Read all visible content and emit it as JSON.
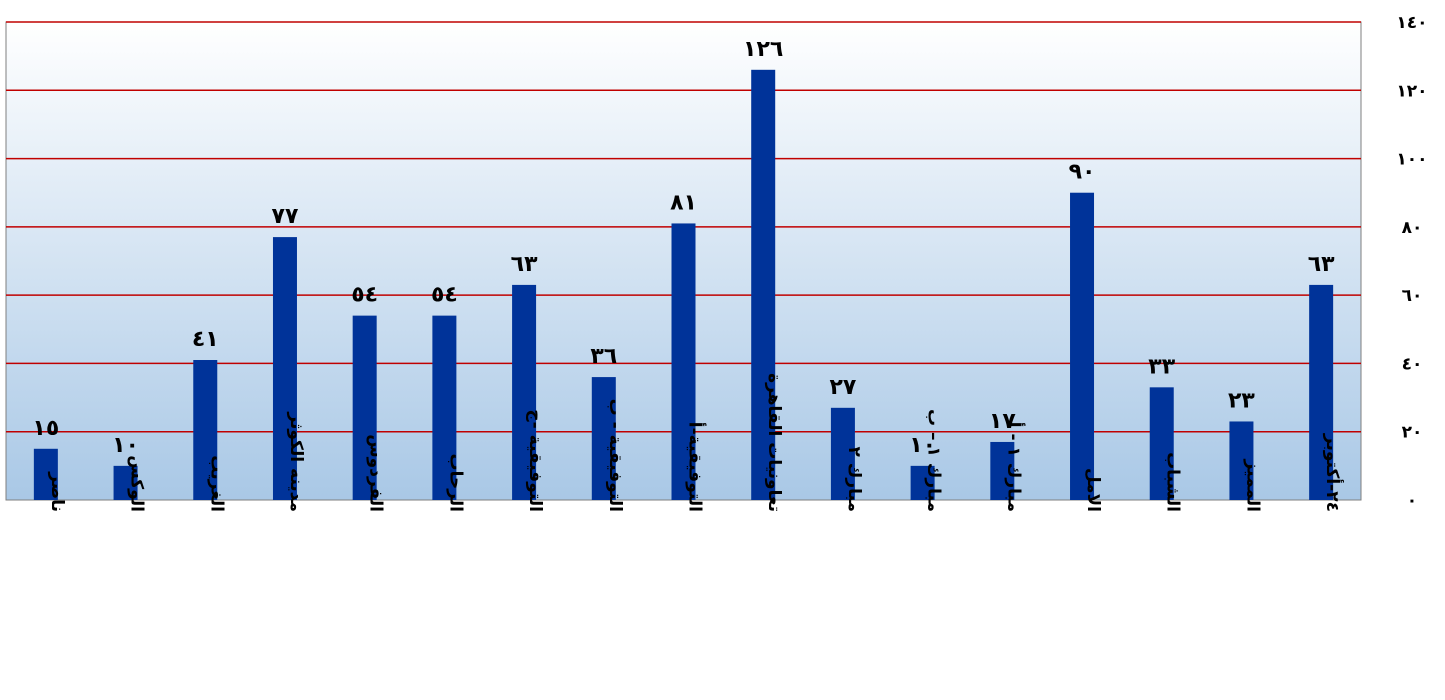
{
  "chart_data": {
    "type": "bar",
    "categories": [
      "ناصر",
      "الوكس",
      "الغريب",
      "مدينه الكوثر",
      "الفردوس",
      "الرحاب",
      "التوفيقية -ج",
      "التوفيقية - ب",
      "التوفيقية-أ",
      "تعاونيات القاهرة",
      "مبارك ٢",
      "مبارك ١ – ب",
      "مبارك ١ - أ",
      "الامل",
      "الشباب",
      "المميز",
      "٢٤-أكتوبر"
    ],
    "values": [
      15,
      10,
      41,
      77,
      54,
      54,
      63,
      36,
      81,
      126,
      27,
      10,
      17,
      90,
      33,
      23,
      63
    ],
    "value_labels": [
      "١٥",
      "١٠",
      "٤١",
      "٧٧",
      "٥٤",
      "٥٤",
      "٦٣",
      "٣٦",
      "٨١",
      "١٢٦",
      "٢٧",
      "١٠",
      "١٧",
      "٩٠",
      "٣٣",
      "٢٣",
      "٦٣"
    ],
    "y_ticks": [
      0,
      20,
      40,
      60,
      80,
      100,
      120,
      140
    ],
    "y_tick_labels": [
      "٠",
      "٢٠",
      "٤٠",
      "٦٠",
      "٨٠",
      "١٠٠",
      "١٢٠",
      "١٤٠"
    ],
    "ylim": [
      0,
      140
    ],
    "y_axis_side": "right",
    "grid": true,
    "legend": "none",
    "title": "",
    "xlabel": "",
    "ylabel": "",
    "colors": {
      "bar": "#003399",
      "grid": "#c00000",
      "plot_bg_top": "#ffffff",
      "plot_bg_bottom": "#a9c8e6",
      "text": "#000000"
    }
  }
}
